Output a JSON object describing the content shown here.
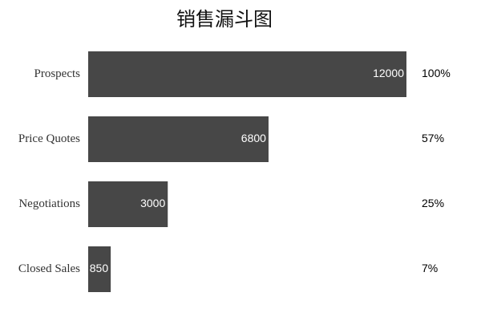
{
  "chart_data": {
    "type": "bar",
    "orientation": "horizontal",
    "title": "销售漏斗图",
    "categories": [
      "Prospects",
      "Price Quotes",
      "Negotiations",
      "Closed Sales"
    ],
    "values": [
      12000,
      6800,
      3000,
      850
    ],
    "percent_labels": [
      "100%",
      "57%",
      "25%",
      "7%"
    ],
    "xlim": [
      0,
      12000
    ],
    "bar_color": "#474747",
    "value_label_color": "#ffffff",
    "grid": false,
    "legend": "none"
  }
}
